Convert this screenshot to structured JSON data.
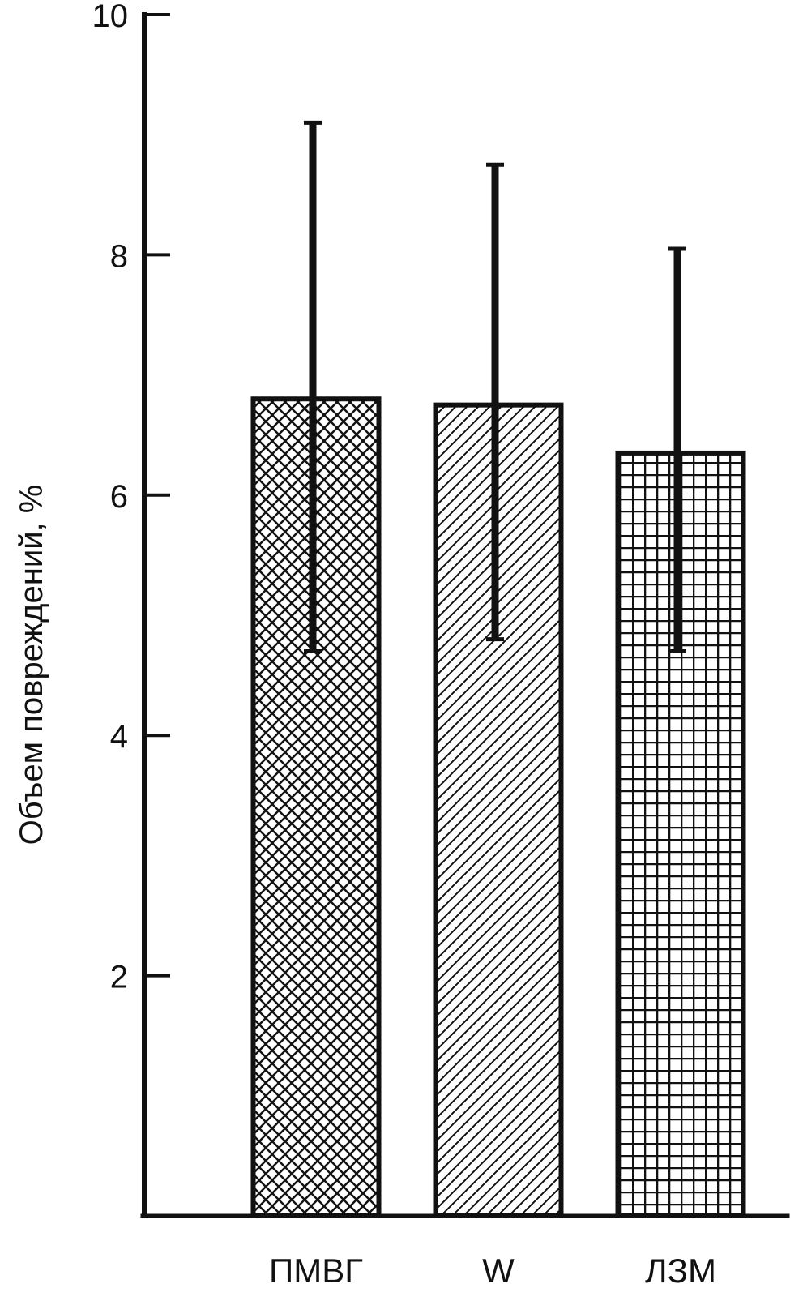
{
  "chart_data": {
    "type": "bar",
    "title": "",
    "xlabel": "",
    "ylabel": "Объем повреждений, %",
    "ylim": [
      0,
      10
    ],
    "yticks": [
      2,
      4,
      6,
      8,
      10
    ],
    "ytick_labels": [
      "2",
      "4",
      "6",
      "8",
      "10"
    ],
    "categories": [
      "ПМВГ",
      "W",
      "ЛЗМ"
    ],
    "values": [
      6.8,
      6.75,
      6.35
    ],
    "error_upper": [
      9.1,
      8.75,
      8.05
    ],
    "error_lower": [
      4.7,
      4.8,
      4.7
    ],
    "patterns": [
      "crosshatch",
      "diagonal",
      "grid"
    ],
    "grid": false,
    "legend": "none",
    "colors": {
      "ink": "#111111",
      "background": "#ffffff"
    }
  }
}
